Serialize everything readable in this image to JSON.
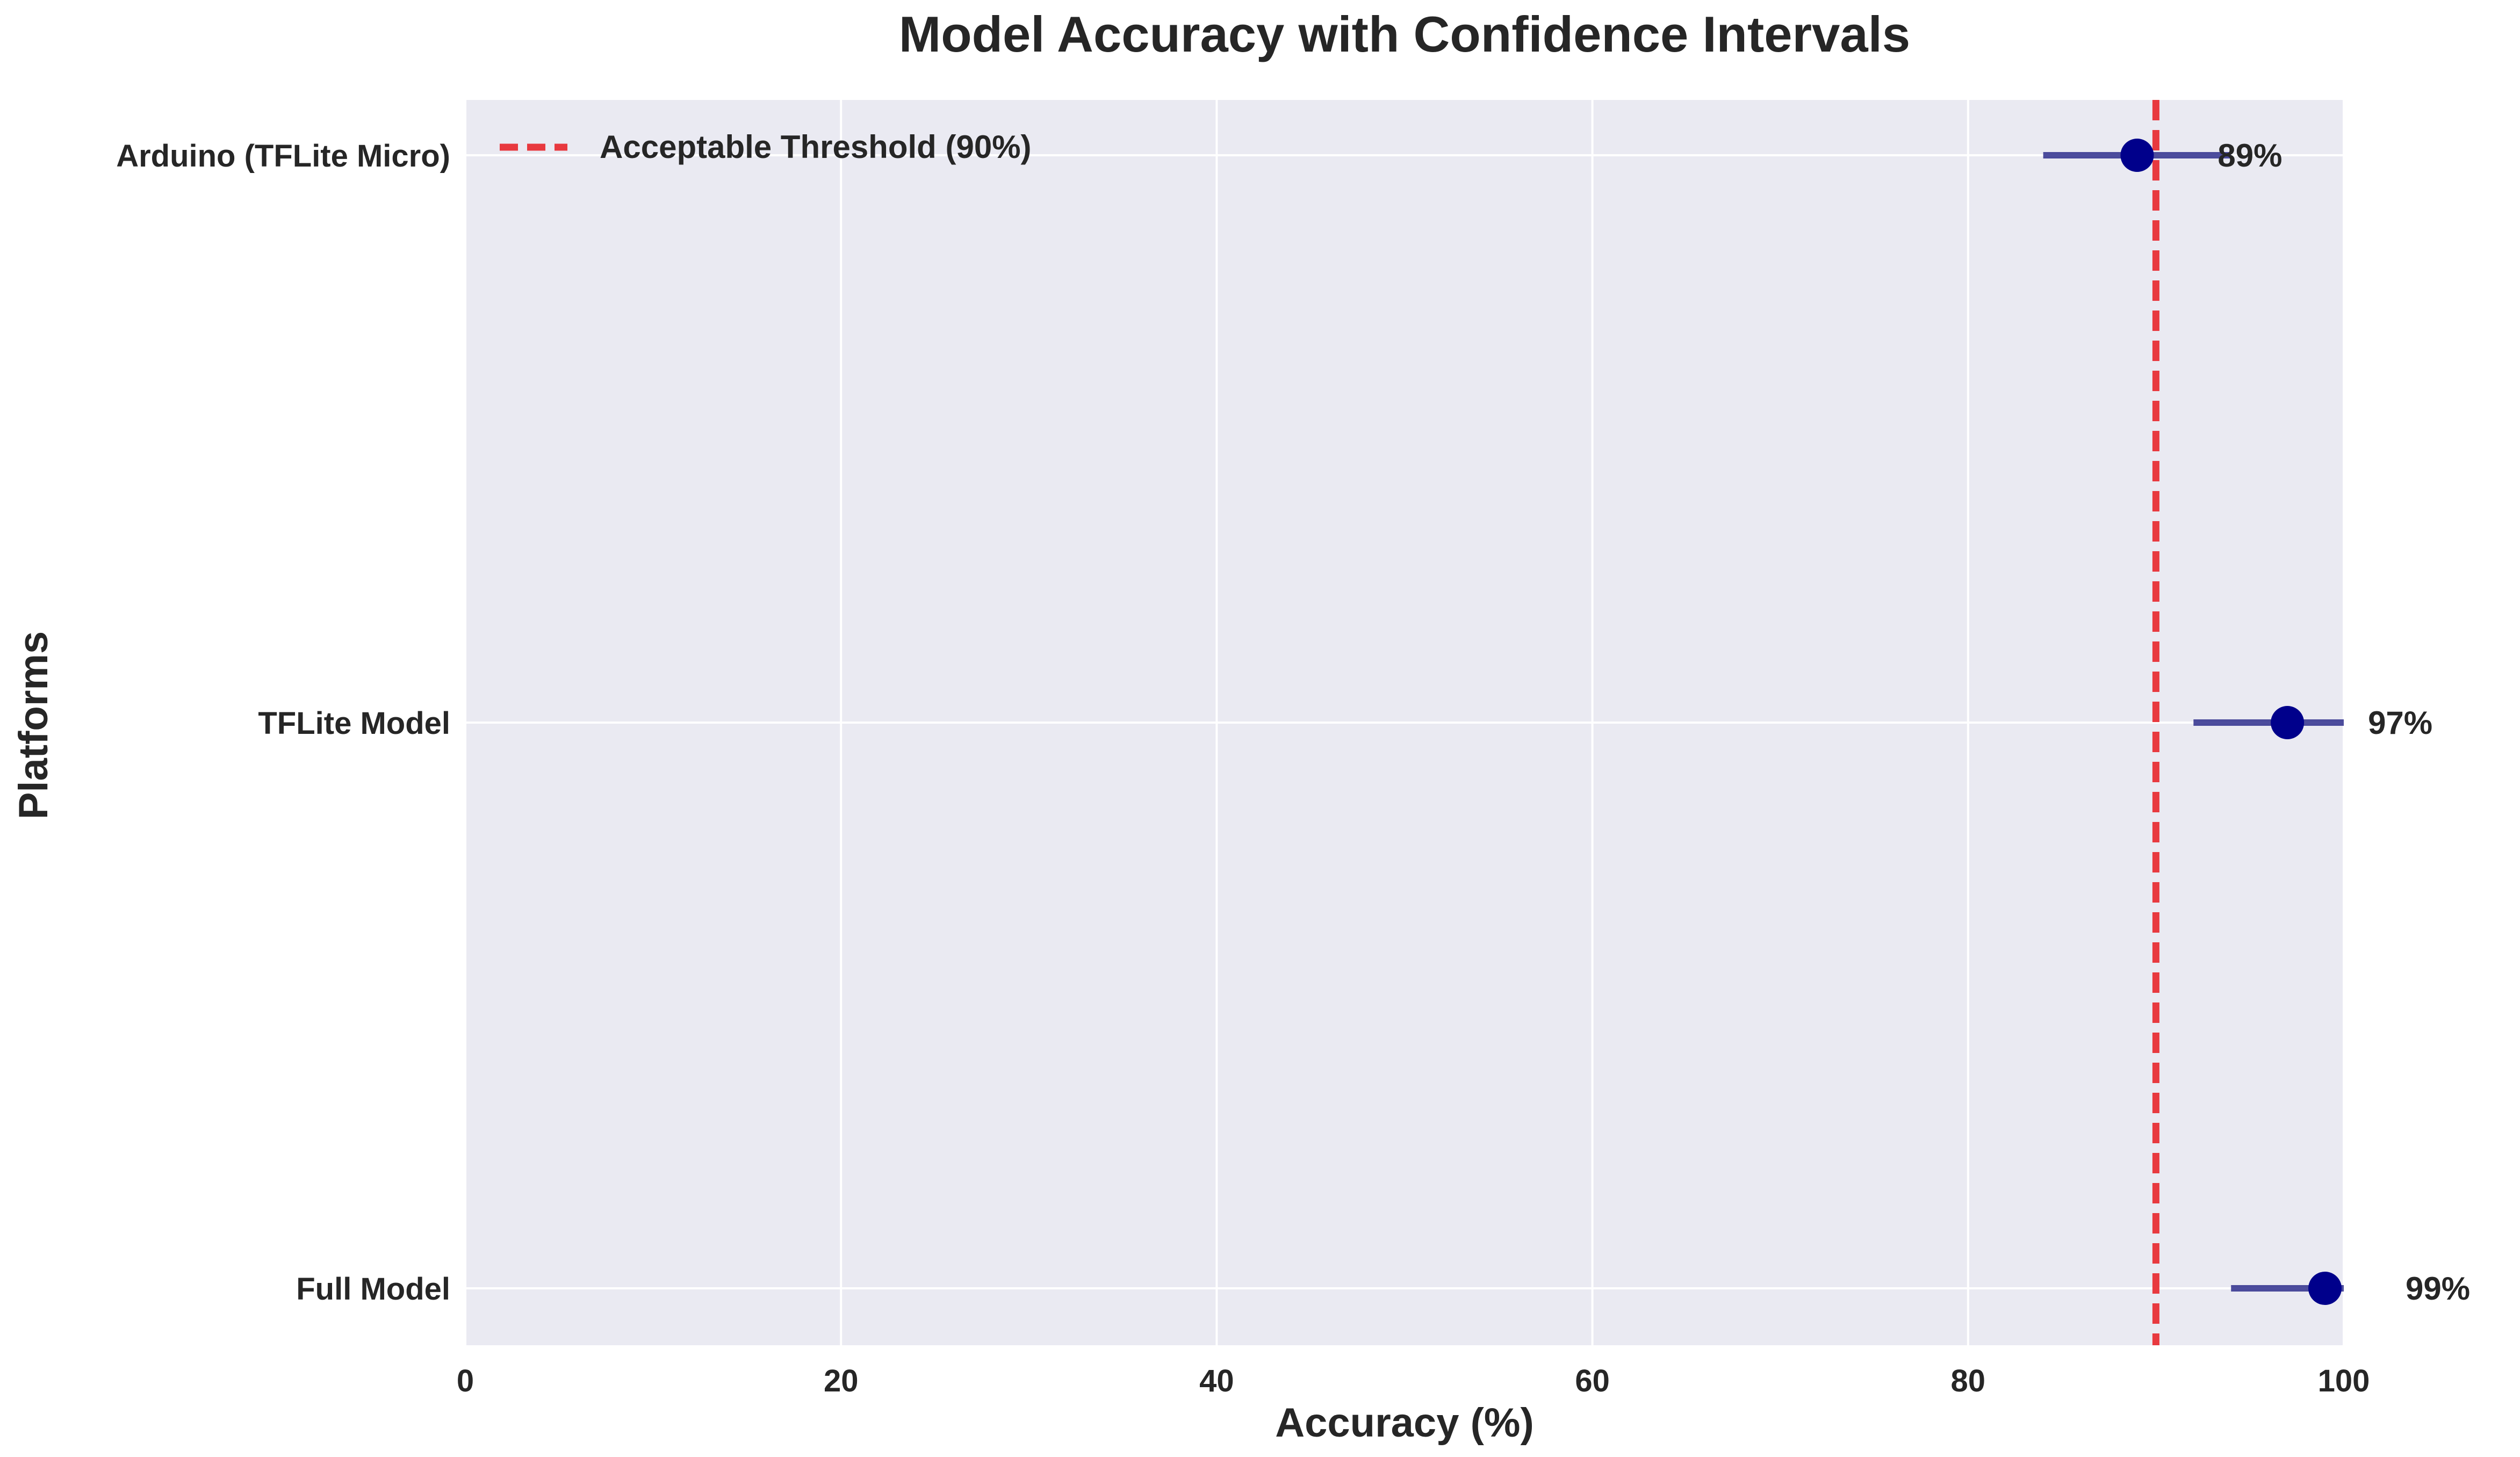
{
  "chart_data": {
    "type": "scatter",
    "title": "Model Accuracy with Confidence Intervals",
    "xlabel": "Accuracy (%)",
    "ylabel": "Platforms",
    "xlim": [
      0,
      100
    ],
    "xticks": [
      0,
      20,
      40,
      60,
      80,
      100
    ],
    "categories": [
      "Full Model",
      "TFLite Model",
      "Arduino (TFLite Micro)"
    ],
    "values": [
      99,
      97,
      89
    ],
    "ci_lower": [
      94,
      92,
      84
    ],
    "ci_upper": [
      100,
      100,
      94
    ],
    "value_labels": [
      "99%",
      "97%",
      "89%"
    ],
    "threshold": {
      "value": 90,
      "label": "Acceptable Threshold (90%)",
      "color": "#e8393f"
    },
    "point_color": "#00008b",
    "error_color": "#2e2e8c",
    "plot_background": "#eaeaf2",
    "grid": true,
    "legend_position": "top-left"
  }
}
